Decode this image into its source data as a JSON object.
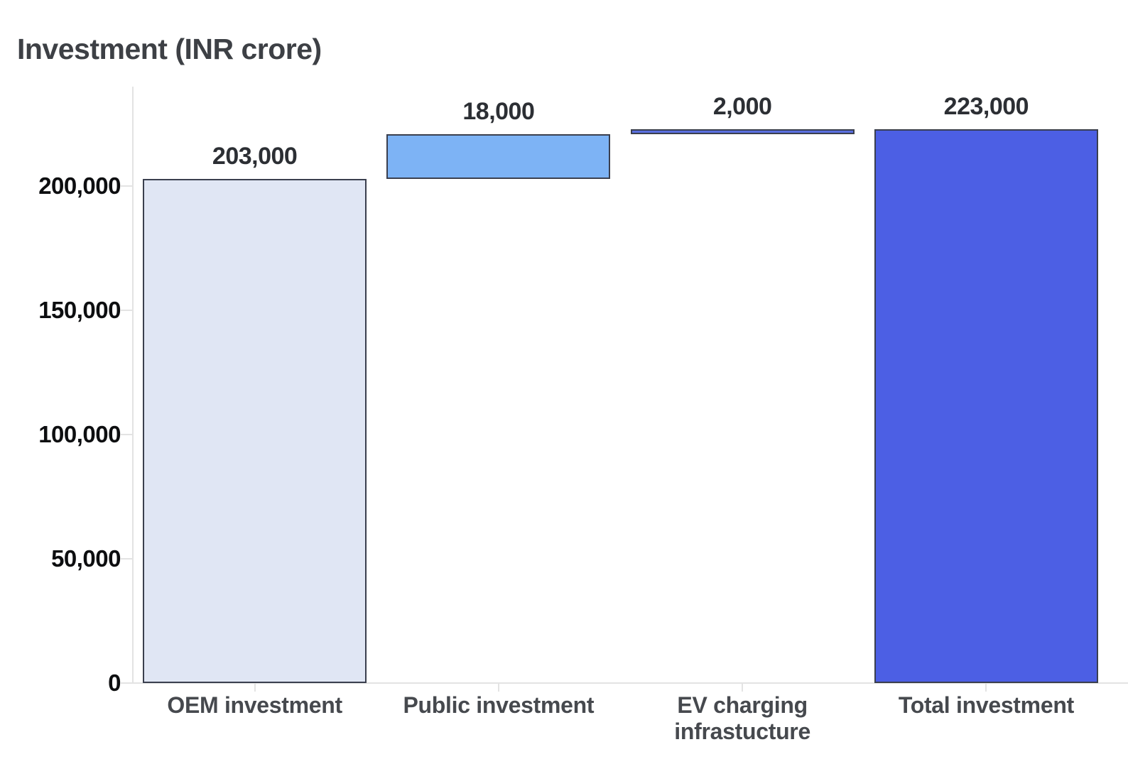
{
  "header": {
    "title": "Investment (INR crore)"
  },
  "colors": {
    "background": "#ffffff",
    "title_text": "#3d4045",
    "y_tick_text": "#0d0e10",
    "value_label_text": "#2c2f34",
    "category_text": "#46494e",
    "axis_line": "#e3e3e3",
    "bar_border": "#3a3f4e"
  },
  "chart_data": {
    "type": "bar",
    "subtype": "waterfall",
    "title": "Investment (INR crore)",
    "xlabel": "",
    "ylabel": "Investment (INR crore)",
    "grid": false,
    "legend": false,
    "categories": [
      "OEM investment",
      "Public investment",
      "EV charging\ninfrastucture",
      "Total investment"
    ],
    "bars": [
      {
        "label": "OEM investment",
        "start": 0,
        "end": 203000,
        "value": 203000,
        "value_label": "203,000",
        "color": "#e0e6f4"
      },
      {
        "label": "Public investment",
        "start": 203000,
        "end": 221000,
        "value": 18000,
        "value_label": "18,000",
        "color": "#7db3f5"
      },
      {
        "label": "EV charging\ninfrastucture",
        "start": 221000,
        "end": 223000,
        "value": 2000,
        "value_label": "2,000",
        "color": "#5a6fe0"
      },
      {
        "label": "Total investment",
        "start": 0,
        "end": 223000,
        "value": 223000,
        "value_label": "223,000",
        "color": "#4c5fe4"
      }
    ],
    "y_axis": {
      "ylim": [
        0,
        240000
      ],
      "ticks": [
        0,
        50000,
        100000,
        150000,
        200000
      ],
      "tick_labels": [
        "0",
        "50,000",
        "100,000",
        "150,000",
        "200,000"
      ]
    }
  }
}
